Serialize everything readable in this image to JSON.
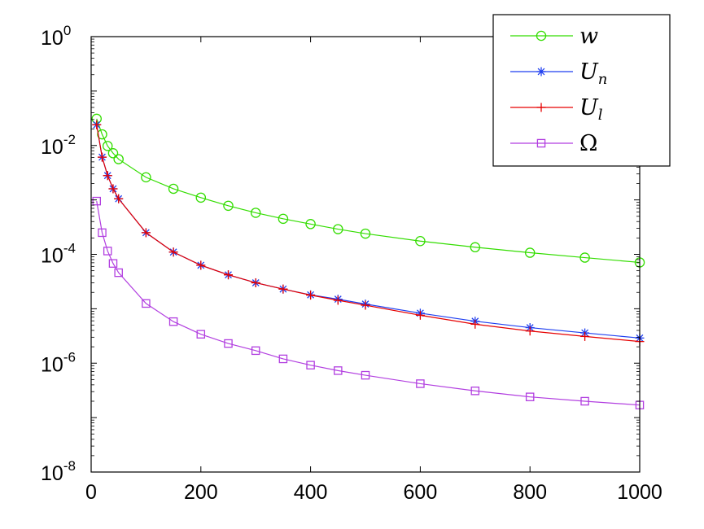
{
  "chart_data": {
    "type": "line",
    "title": "",
    "xlabel": "",
    "ylabel": "",
    "xlim": [
      0,
      1000
    ],
    "ylim": [
      1e-08,
      1
    ],
    "yscale": "log",
    "grid": false,
    "legend_position": "top-right",
    "x_ticks": [
      {
        "value": 0,
        "label": "0"
      },
      {
        "value": 200,
        "label": "200"
      },
      {
        "value": 400,
        "label": "400"
      },
      {
        "value": 600,
        "label": "600"
      },
      {
        "value": 800,
        "label": "800"
      },
      {
        "value": 1000,
        "label": "1000"
      }
    ],
    "y_ticks": [
      {
        "value": 1,
        "base": "10",
        "exp": "0"
      },
      {
        "value": 0.01,
        "base": "10",
        "exp": "-2"
      },
      {
        "value": 0.0001,
        "base": "10",
        "exp": "-4"
      },
      {
        "value": 1e-06,
        "base": "10",
        "exp": "-6"
      },
      {
        "value": 1e-08,
        "base": "10",
        "exp": "-8"
      }
    ],
    "x": [
      10,
      20,
      30,
      40,
      50,
      100,
      150,
      200,
      250,
      300,
      350,
      400,
      450,
      500,
      600,
      700,
      800,
      900,
      1000
    ],
    "series": [
      {
        "name": "w",
        "name_main": "w",
        "name_sub": "",
        "color": "#33dd00",
        "marker": "circle",
        "values": [
          0.031,
          0.016,
          0.0098,
          0.0072,
          0.0056,
          0.0026,
          0.0016,
          0.0011,
          0.00078,
          0.00058,
          0.00045,
          0.00036,
          0.00029,
          0.00024,
          0.000175,
          0.000135,
          0.000107,
          8.7e-05,
          7.1e-05
        ]
      },
      {
        "name": "U_n",
        "name_main": "U",
        "name_sub": "n",
        "color": "#1f3ff0",
        "marker": "asterisk",
        "values": [
          0.024,
          0.0061,
          0.0028,
          0.0016,
          0.00105,
          0.00025,
          0.00011,
          6.3e-05,
          4.2e-05,
          3e-05,
          2.3e-05,
          1.8e-05,
          1.5e-05,
          1.22e-05,
          8.3e-06,
          5.9e-06,
          4.5e-06,
          3.6e-06,
          2.9e-06
        ]
      },
      {
        "name": "U_l",
        "name_main": "U",
        "name_sub": "l",
        "color": "#e60000",
        "marker": "plus",
        "values": [
          0.024,
          0.0061,
          0.0028,
          0.0016,
          0.00105,
          0.00025,
          0.00011,
          6.3e-05,
          4.2e-05,
          3e-05,
          2.3e-05,
          1.78e-05,
          1.43e-05,
          1.16e-05,
          7.6e-06,
          5.2e-06,
          3.9e-06,
          3.1e-06,
          2.5e-06
        ]
      },
      {
        "name": "Ω",
        "name_main": "Ω",
        "name_sub": "",
        "color": "#b23fe0",
        "marker": "square",
        "values": [
          0.00095,
          0.00025,
          0.000115,
          6.8e-05,
          4.6e-05,
          1.25e-05,
          5.8e-06,
          3.4e-06,
          2.3e-06,
          1.7e-06,
          1.2e-06,
          9.2e-07,
          7.3e-07,
          6e-07,
          4.2e-07,
          3.1e-07,
          2.4e-07,
          2e-07,
          1.7e-07
        ]
      }
    ]
  }
}
